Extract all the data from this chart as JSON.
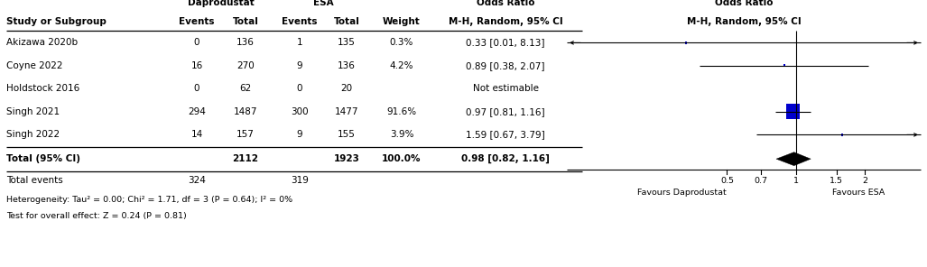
{
  "studies": [
    "Akizawa 2020b",
    "Coyne 2022",
    "Holdstock 2016",
    "Singh 2021",
    "Singh 2022"
  ],
  "dap_events": [
    0,
    16,
    0,
    294,
    14
  ],
  "dap_total": [
    136,
    270,
    62,
    1487,
    157
  ],
  "esa_events": [
    1,
    9,
    0,
    300,
    9
  ],
  "esa_total": [
    135,
    136,
    20,
    1477,
    155
  ],
  "weights": [
    "0.3%",
    "4.2%",
    "",
    "91.6%",
    "3.9%"
  ],
  "or_text": [
    "0.33 [0.01, 8.13]",
    "0.89 [0.38, 2.07]",
    "Not estimable",
    "0.97 [0.81, 1.16]",
    "1.59 [0.67, 3.79]"
  ],
  "or_values": [
    0.33,
    0.89,
    null,
    0.97,
    1.59
  ],
  "or_lower": [
    0.01,
    0.38,
    null,
    0.81,
    0.67
  ],
  "or_upper": [
    8.13,
    2.07,
    null,
    1.16,
    3.79
  ],
  "total_dap_total": 2112,
  "total_esa_total": 1923,
  "total_weight": "100.0%",
  "total_or_text": "0.98 [0.82, 1.16]",
  "total_or": 0.98,
  "total_lower": 0.82,
  "total_upper": 1.16,
  "total_dap_events": 324,
  "total_esa_events": 319,
  "heterogeneity_text": "Heterogeneity: Tau² = 0.00; Chi² = 1.71, df = 3 (P = 0.64); I² = 0%",
  "overall_effect_text": "Test for overall effect: Z = 0.24 (P = 0.81)",
  "square_color": "#0000CD",
  "diamond_color": "#000000",
  "weight_nums": [
    0.3,
    4.2,
    0.0,
    91.6,
    3.9
  ],
  "x_ticks": [
    0.5,
    0.7,
    1.0,
    1.5,
    2.0
  ],
  "x_tick_labels": [
    "0.5",
    "0.7",
    "1",
    "1.5",
    "2"
  ],
  "favours_left": "Favours Daprodustat",
  "favours_right": "Favours ESA",
  "plot_log_min": -2.302585,
  "plot_log_max": 1.252763
}
